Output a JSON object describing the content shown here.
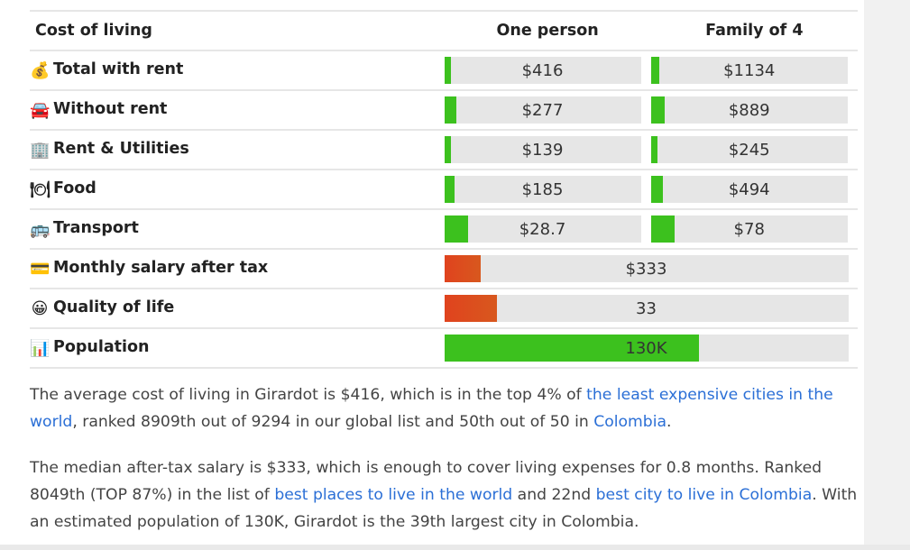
{
  "table": {
    "headers": [
      "Cost of living",
      "One person",
      "Family of 4"
    ],
    "rows": [
      {
        "icon": "money-bag-icon",
        "glyph": "💰",
        "label": "Total with rent",
        "one": "$416",
        "one_fill": 0.03,
        "family": "$1134",
        "family_fill": 0.04
      },
      {
        "icon": "car-icon",
        "glyph": "🚘",
        "label": "Without rent",
        "one": "$277",
        "one_fill": 0.06,
        "family": "$889",
        "family_fill": 0.07
      },
      {
        "icon": "building-icon",
        "glyph": "🏢",
        "label": "Rent & Utilities",
        "one": "$139",
        "one_fill": 0.02,
        "family": "$245",
        "family_fill": 0.02
      },
      {
        "icon": "plate-utensils-icon",
        "glyph": "🍽",
        "label": "Food",
        "one": "$185",
        "one_fill": 0.05,
        "family": "$494",
        "family_fill": 0.06
      },
      {
        "icon": "bus-icon",
        "glyph": "🚌",
        "label": "Transport",
        "one": "$28.7",
        "one_fill": 0.12,
        "family": "$78",
        "family_fill": 0.12
      }
    ],
    "wide_rows": [
      {
        "icon": "credit-card-icon",
        "glyph": "💳",
        "label": "Monthly salary after tax",
        "value": "$333",
        "fill": 0.09,
        "color": "orange"
      },
      {
        "icon": "smiley-face-icon",
        "glyph": "😀",
        "label": "Quality of life",
        "value": "33",
        "fill": 0.13,
        "color": "orange"
      },
      {
        "icon": "bar-chart-icon",
        "glyph": "📊",
        "label": "Population",
        "value": "130K",
        "fill": 0.63,
        "color": "green"
      }
    ]
  },
  "paragraph1": {
    "t1": "The average cost of living in Girardot is $416, which is in the top 4% of ",
    "link1": "the least expensive cities in the world",
    "t2": ", ranked 8909th out of 9294 in our global list and 50th out of 50 in ",
    "link2": "Colombia",
    "t3": "."
  },
  "paragraph2": {
    "t1": "The median after-tax salary is $333, which is enough to cover living expenses for 0.8 months. Ranked 8049th (TOP 87%) in the list of ",
    "link1": "best places to live in the world",
    "t2": " and 22nd ",
    "link2": "best city to live in Colombia",
    "t3": ". With an estimated population of 130K, Girardot is the 39th largest city in Colombia."
  },
  "colors": {
    "green": "#3cc11e",
    "orange": "#e0431e",
    "link": "#2b6fd6"
  }
}
